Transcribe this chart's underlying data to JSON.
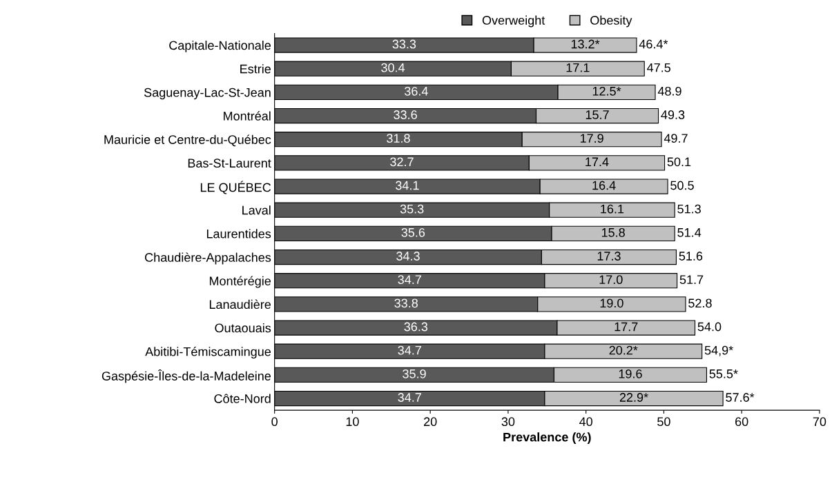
{
  "chart_data": {
    "type": "bar",
    "orientation": "horizontal",
    "stacked": true,
    "xlabel": "Prevalence (%)",
    "categories": [
      "Capitale-Nationale",
      "Estrie",
      "Saguenay-Lac-St-Jean",
      "Montréal",
      "Mauricie et Centre-du-Québec",
      "Bas-St-Laurent",
      "LE QUÉBEC",
      "Laval",
      "Laurentides",
      "Chaudière-Appalaches",
      "Montérégie",
      "Lanaudière",
      "Outaouais",
      "Abitibi-Témiscamingue",
      "Gaspésie-Îles-de-la-Madeleine",
      "Côte-Nord"
    ],
    "series": [
      {
        "name": "Overweight",
        "color": "#595959",
        "values": [
          33.3,
          30.4,
          36.4,
          33.6,
          31.8,
          32.7,
          34.1,
          35.3,
          35.6,
          34.3,
          34.7,
          33.8,
          36.3,
          34.7,
          35.9,
          34.7
        ],
        "value_labels": [
          "33.3",
          "30.4",
          "36.4",
          "33.6",
          "31.8",
          "32.7",
          "34.1",
          "35.3",
          "35.6",
          "34.3",
          "34.7",
          "33.8",
          "36.3",
          "34.7",
          "35.9",
          "34.7"
        ]
      },
      {
        "name": "Obesity",
        "color": "#c0c0c0",
        "values": [
          13.2,
          17.1,
          12.5,
          15.7,
          17.9,
          17.4,
          16.4,
          16.1,
          15.8,
          17.3,
          17.0,
          19.0,
          17.7,
          20.2,
          19.6,
          22.9
        ],
        "value_labels": [
          "13.2*",
          "17.1",
          "12.5*",
          "15.7",
          "17.9",
          "17.4",
          "16.4",
          "16.1",
          "15.8",
          "17.3",
          "17.0",
          "19.0",
          "17.7",
          "20.2*",
          "19.6",
          "22.9*"
        ]
      }
    ],
    "totals": [
      "46.4*",
      "47.5",
      "48.9",
      "49.3",
      "49.7",
      "50.1",
      "50.5",
      "51.3",
      "51.4",
      "51.6",
      "51.7",
      "52.8",
      "54.0",
      "54,9*",
      "55.5*",
      "57.6*"
    ],
    "xlim": [
      0,
      70
    ],
    "xticks": [
      0,
      10,
      20,
      30,
      40,
      50,
      60,
      70
    ],
    "grid": false,
    "legend": "top"
  }
}
